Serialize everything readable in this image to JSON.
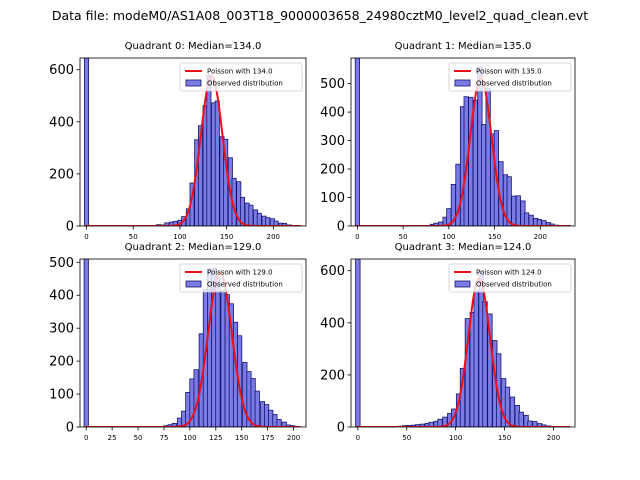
{
  "figure_title": "Data file: modeM0/AS1A08_003T18_9000003658_24980cztM0_level2_quad_clean.evt",
  "colors": {
    "bar_fill": "#7b7be6",
    "bar_edge": "#15156e",
    "line": "#e8111a"
  },
  "chart_data": [
    {
      "type": "bar",
      "title": "Quadrant 0: Median=134.0",
      "xlim": [
        -7,
        235
      ],
      "ylim": [
        0,
        645
      ],
      "xticks": [
        0,
        50,
        100,
        150,
        200
      ],
      "yticks": [
        0,
        200,
        400,
        600
      ],
      "bin_width": 4.5,
      "spike": {
        "x": 0,
        "value": 645
      },
      "bins_x": [
        77,
        82,
        86,
        91,
        95,
        100,
        104,
        109,
        113,
        118,
        122,
        127,
        131,
        136,
        140,
        145,
        149,
        154,
        158,
        163,
        167,
        172,
        176,
        181,
        185,
        190,
        194,
        199,
        203,
        208,
        212,
        217,
        221
      ],
      "bins_value": [
        5,
        4,
        12,
        15,
        18,
        22,
        36,
        66,
        165,
        331,
        385,
        462,
        580,
        473,
        480,
        343,
        333,
        262,
        183,
        170,
        110,
        88,
        80,
        62,
        49,
        38,
        32,
        28,
        19,
        11,
        10,
        4,
        2
      ],
      "poisson": {
        "label": "Poisson with 134.0",
        "mean": 134.0,
        "peak": 575,
        "sigma": 11.6
      },
      "legend": [
        "Poisson with 134.0",
        "Observed distribution"
      ]
    },
    {
      "type": "bar",
      "title": "Quadrant 1: Median=135.0",
      "xlim": [
        -7,
        238
      ],
      "ylim": [
        0,
        590
      ],
      "xticks": [
        0,
        50,
        100,
        150,
        200
      ],
      "yticks": [
        0,
        100,
        200,
        300,
        400,
        500
      ],
      "bin_width": 4.8,
      "spike": {
        "x": 0,
        "value": 590
      },
      "bins_x": [
        77,
        82,
        86,
        91,
        96,
        100,
        105,
        110,
        115,
        119,
        124,
        129,
        134,
        138,
        143,
        148,
        152,
        157,
        162,
        166,
        171,
        176,
        181,
        185,
        190,
        195,
        199,
        204,
        209,
        213,
        218,
        223
      ],
      "bins_value": [
        2,
        6,
        10,
        14,
        31,
        61,
        146,
        217,
        419,
        454,
        452,
        442,
        559,
        356,
        484,
        323,
        335,
        226,
        180,
        173,
        105,
        106,
        88,
        46,
        38,
        27,
        23,
        19,
        12,
        7,
        3,
        2
      ],
      "poisson": {
        "label": "Poisson with 135.0",
        "mean": 135.0,
        "peak": 520,
        "sigma": 11.6
      },
      "legend": [
        "Poisson with 135.0",
        "Observed distribution"
      ]
    },
    {
      "type": "bar",
      "title": "Quadrant 2: Median=129.0",
      "xlim": [
        -6,
        212
      ],
      "ylim": [
        0,
        510
      ],
      "xticks": [
        0,
        25,
        50,
        75,
        100,
        125,
        150,
        175,
        200
      ],
      "yticks": [
        0,
        100,
        200,
        300,
        400,
        500
      ],
      "bin_width": 4.2,
      "spike": {
        "x": 0,
        "value": 510
      },
      "bins_x": [
        77,
        81,
        85,
        90,
        94,
        98,
        102,
        106,
        111,
        115,
        119,
        123,
        127,
        132,
        136,
        140,
        144,
        148,
        153,
        157,
        161,
        165,
        170,
        174,
        178,
        182,
        186,
        191,
        195,
        199
      ],
      "bins_value": [
        4,
        7,
        11,
        27,
        48,
        105,
        146,
        174,
        283,
        418,
        480,
        482,
        455,
        414,
        402,
        374,
        318,
        277,
        196,
        168,
        147,
        109,
        77,
        68,
        51,
        38,
        23,
        15,
        6,
        4
      ],
      "poisson": {
        "label": "Poisson with 129.0",
        "mean": 129.0,
        "peak": 470,
        "sigma": 11.4
      },
      "legend": [
        "Poisson with 129.0",
        "Observed distribution"
      ]
    },
    {
      "type": "bar",
      "title": "Quadrant 3: Median=124.0",
      "xlim": [
        -7,
        222
      ],
      "ylim": [
        0,
        645
      ],
      "xticks": [
        0,
        50,
        100,
        150,
        200
      ],
      "yticks": [
        0,
        200,
        400,
        600
      ],
      "bin_width": 4.6,
      "spike": {
        "x": 0,
        "value": 645
      },
      "bins_x": [
        38,
        43,
        48,
        52,
        57,
        61,
        66,
        71,
        75,
        80,
        84,
        89,
        94,
        98,
        103,
        107,
        112,
        117,
        121,
        126,
        130,
        135,
        140,
        144,
        149,
        153,
        158,
        163,
        167,
        172,
        176,
        181,
        186,
        190,
        195
      ],
      "bins_value": [
        2,
        3,
        5,
        6,
        7,
        9,
        11,
        14,
        18,
        22,
        30,
        38,
        52,
        69,
        127,
        225,
        416,
        440,
        523,
        595,
        481,
        434,
        332,
        281,
        186,
        153,
        115,
        83,
        57,
        45,
        23,
        21,
        13,
        8,
        4
      ],
      "poisson": {
        "label": "Poisson with 124.0",
        "mean": 124.0,
        "peak": 570,
        "sigma": 11.1
      },
      "legend": [
        "Poisson with 124.0",
        "Observed distribution"
      ]
    }
  ]
}
